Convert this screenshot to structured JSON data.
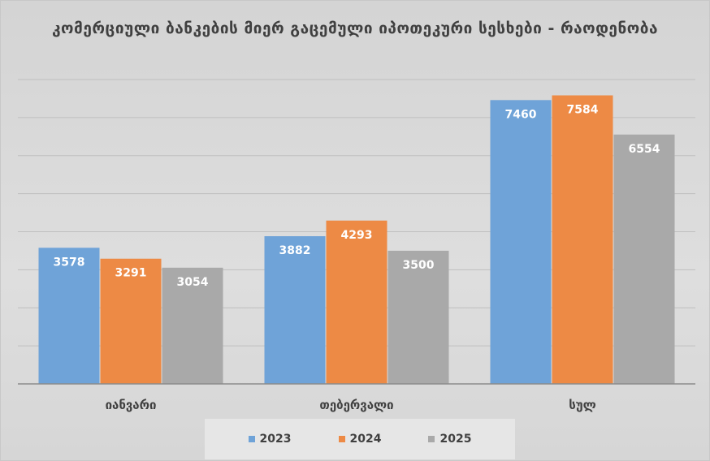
{
  "chart_data": {
    "type": "bar",
    "title": "კომერციული ბანკების მიერ გაცემული იპოთეკური სესხები - რაოდენობა",
    "categories": [
      "იანვარი",
      "თებერვალი",
      "სულ"
    ],
    "series": [
      {
        "name": "2023",
        "values": [
          3578,
          3882,
          7460
        ],
        "color": "#6fa3d8"
      },
      {
        "name": "2024",
        "values": [
          3291,
          4293,
          7584
        ],
        "color": "#ed8a45"
      },
      {
        "name": "2025",
        "values": [
          3054,
          3500,
          6554
        ],
        "color": "#a9a9a9"
      }
    ],
    "ylim": [
      0,
      8000
    ],
    "ytick_step": 1000,
    "grid": true,
    "legend_position": "bottom",
    "data_labels": true
  }
}
